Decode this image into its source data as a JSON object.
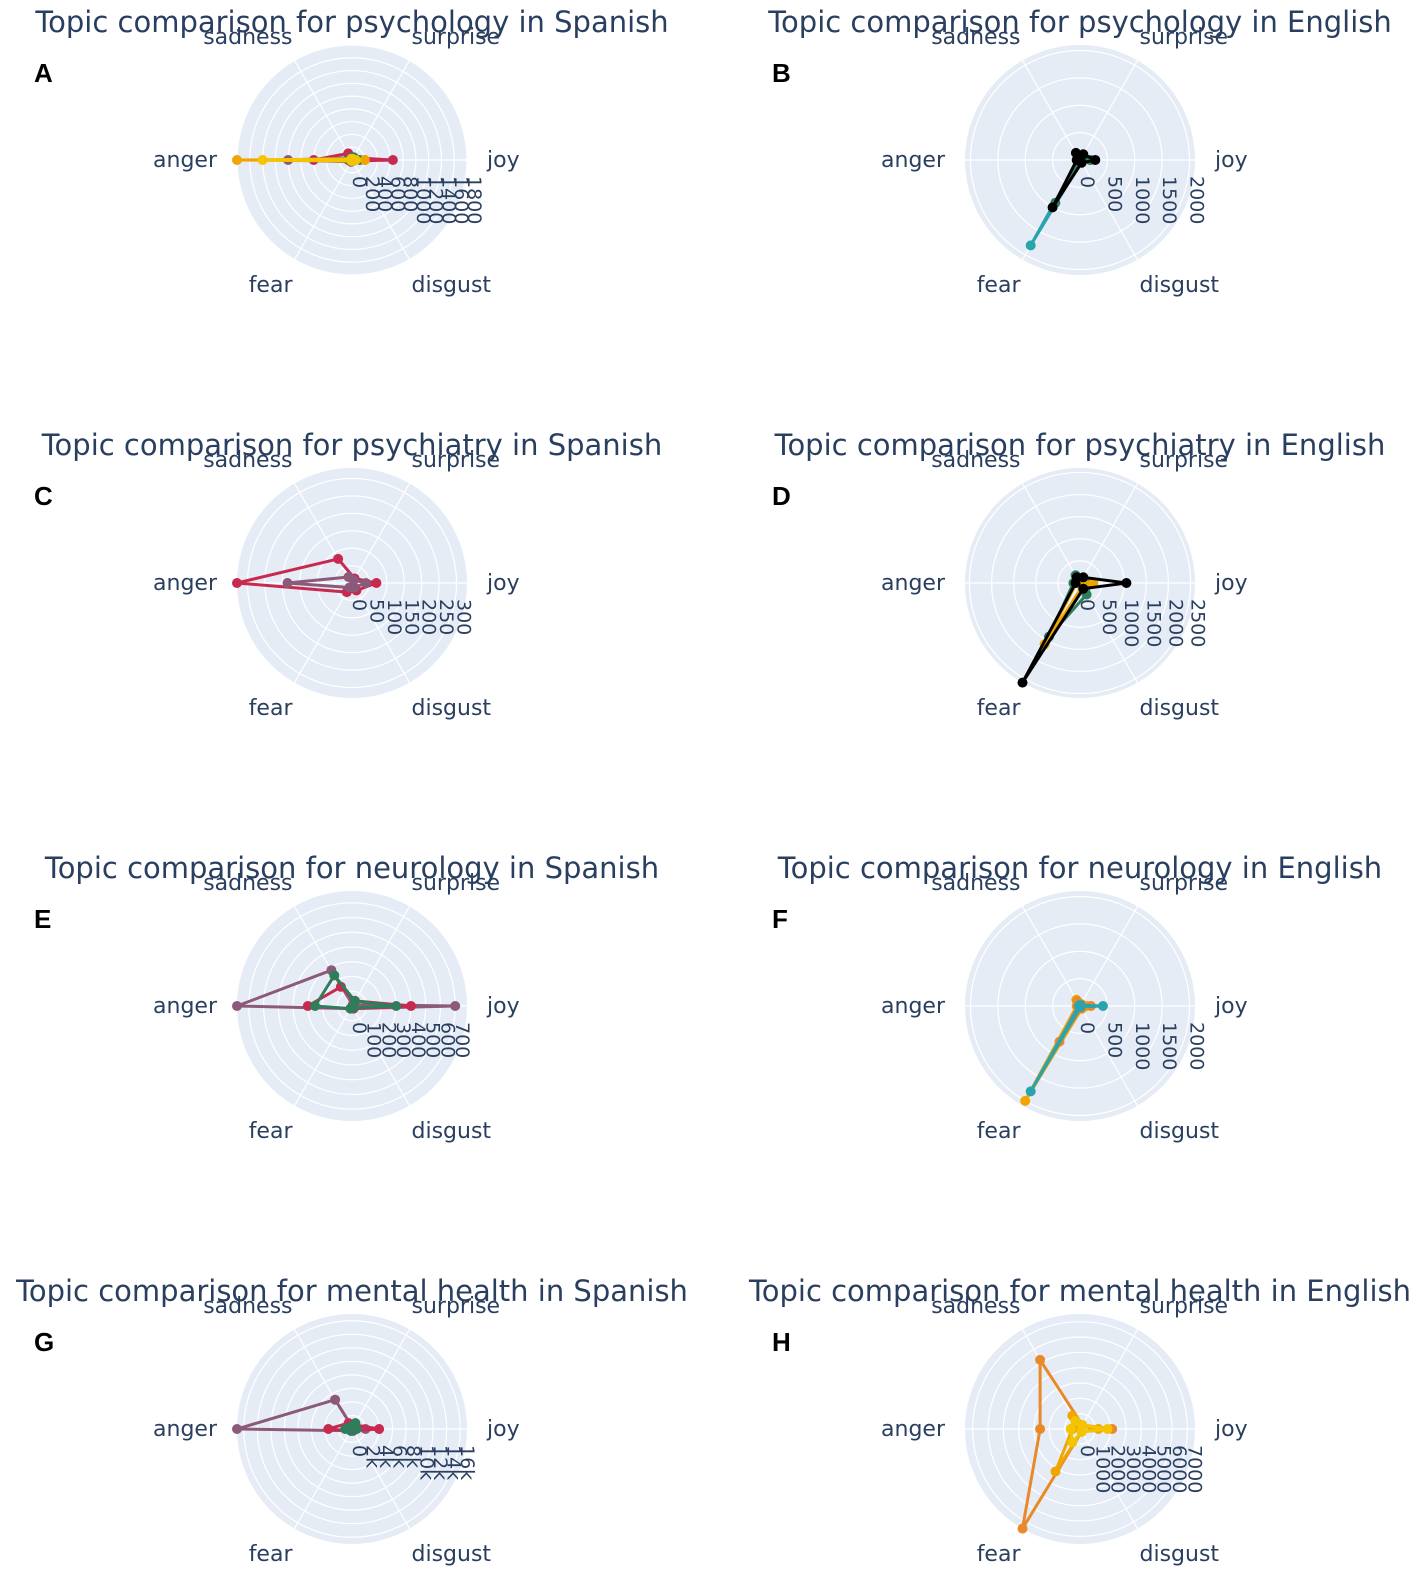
{
  "axes": [
    "joy",
    "surprise",
    "sadness",
    "anger",
    "fear",
    "disgust"
  ],
  "chart_data": [
    {
      "type": "radar",
      "panel": "A",
      "title": "Topic comparison for psychology in Spanish",
      "range": [
        0,
        1800
      ],
      "tick_values": [
        0,
        200,
        400,
        600,
        800,
        1000,
        1200,
        1400,
        1600,
        1800
      ],
      "tick_labels": [
        "0",
        "200",
        "400",
        "600",
        "800",
        "1000",
        "1200",
        "1400",
        "1600",
        "1800"
      ],
      "series": [
        {
          "color": "#c8294f",
          "values": {
            "joy": 640,
            "surprise": 40,
            "sadness": 120,
            "anger": 600,
            "fear": 30,
            "disgust": 20
          }
        },
        {
          "color": "#8c5a78",
          "values": {
            "joy": 200,
            "surprise": 40,
            "sadness": 40,
            "anger": 1000,
            "fear": 30,
            "disgust": 20
          }
        },
        {
          "color": "#2e7d5b",
          "values": {
            "joy": 120,
            "surprise": 50,
            "sadness": 30,
            "anger": 60,
            "fear": 20,
            "disgust": 20
          }
        },
        {
          "color": "#f0a500",
          "values": {
            "joy": 200,
            "surprise": 20,
            "sadness": 20,
            "anger": 1800,
            "fear": 20,
            "disgust": 20
          }
        },
        {
          "color": "#f5c400",
          "values": {
            "joy": 60,
            "surprise": 20,
            "sadness": 20,
            "anger": 1400,
            "fear": 10,
            "disgust": 10
          }
        }
      ]
    },
    {
      "type": "radar",
      "panel": "B",
      "title": "Topic comparison for psychology in English",
      "range": [
        0,
        2100
      ],
      "tick_values": [
        0,
        500,
        1000,
        1500,
        2000
      ],
      "tick_labels": [
        "0",
        "500",
        "1000",
        "1500",
        "2000"
      ],
      "series": [
        {
          "color": "#2aa3ad",
          "values": {
            "joy": 200,
            "surprise": 40,
            "sadness": 40,
            "anger": 30,
            "fear": 1800,
            "disgust": 40
          }
        },
        {
          "color": "#2e7d5b",
          "values": {
            "joy": 180,
            "surprise": 60,
            "sadness": 60,
            "anger": 20,
            "fear": 900,
            "disgust": 30
          }
        },
        {
          "color": "#000000",
          "values": {
            "joy": 280,
            "surprise": 120,
            "sadness": 150,
            "anger": 60,
            "fear": 1000,
            "disgust": 60
          }
        }
      ]
    },
    {
      "type": "radar",
      "panel": "C",
      "title": "Topic comparison for psychiatry in Spanish",
      "range": [
        0,
        330
      ],
      "tick_values": [
        0,
        50,
        100,
        150,
        200,
        250,
        300
      ],
      "tick_labels": [
        "0",
        "50",
        "100",
        "150",
        "200",
        "250",
        "300"
      ],
      "series": [
        {
          "color": "#c8294f",
          "values": {
            "joy": 70,
            "surprise": 15,
            "sadness": 80,
            "anger": 330,
            "fear": 30,
            "disgust": 25
          }
        },
        {
          "color": "#8c5a78",
          "values": {
            "joy": 40,
            "surprise": 10,
            "sadness": 20,
            "anger": 185,
            "fear": 15,
            "disgust": 15
          }
        }
      ]
    },
    {
      "type": "radar",
      "panel": "D",
      "title": "Topic comparison for psychiatry in English",
      "range": [
        0,
        2600
      ],
      "tick_values": [
        0,
        500,
        1000,
        1500,
        2000,
        2500
      ],
      "tick_labels": [
        "0",
        "500",
        "1000",
        "1500",
        "2000",
        "2500"
      ],
      "series": [
        {
          "color": "#2e7d5b",
          "values": {
            "joy": 250,
            "surprise": 80,
            "sadness": 200,
            "anger": 150,
            "fear": 1400,
            "disgust": 300
          }
        },
        {
          "color": "#f0a500",
          "values": {
            "joy": 300,
            "surprise": 60,
            "sadness": 100,
            "anger": 80,
            "fear": 1600,
            "disgust": 100
          }
        },
        {
          "color": "#000000",
          "values": {
            "joy": 1050,
            "surprise": 150,
            "sadness": 150,
            "anger": 100,
            "fear": 2600,
            "disgust": 150
          }
        }
      ]
    },
    {
      "type": "radar",
      "panel": "E",
      "title": "Topic comparison for neurology in Spanish",
      "range": [
        0,
        780
      ],
      "tick_values": [
        0,
        100,
        200,
        300,
        400,
        500,
        600,
        700
      ],
      "tick_labels": [
        "0",
        "100",
        "200",
        "300",
        "400",
        "500",
        "600",
        "700"
      ],
      "series": [
        {
          "color": "#8c5a78",
          "values": {
            "joy": 700,
            "surprise": 10,
            "sadness": 280,
            "anger": 780,
            "fear": 20,
            "disgust": 20
          }
        },
        {
          "color": "#c8294f",
          "values": {
            "joy": 400,
            "surprise": 40,
            "sadness": 150,
            "anger": 300,
            "fear": 20,
            "disgust": 20
          }
        },
        {
          "color": "#2e7d5b",
          "values": {
            "joy": 300,
            "surprise": 40,
            "sadness": 240,
            "anger": 250,
            "fear": 20,
            "disgust": 15
          }
        }
      ]
    },
    {
      "type": "radar",
      "panel": "F",
      "title": "Topic comparison for neurology in English",
      "range": [
        0,
        2100
      ],
      "tick_values": [
        0,
        500,
        1000,
        1500,
        2000
      ],
      "tick_labels": [
        "0",
        "500",
        "1000",
        "1500",
        "2000"
      ],
      "series": [
        {
          "color": "#f0a500",
          "values": {
            "joy": 120,
            "surprise": 40,
            "sadness": 130,
            "anger": 60,
            "fear": 2000,
            "disgust": 60
          }
        },
        {
          "color": "#e8892a",
          "values": {
            "joy": 200,
            "surprise": 40,
            "sadness": 100,
            "anger": 50,
            "fear": 750,
            "disgust": 50
          }
        },
        {
          "color": "#2aa3ad",
          "values": {
            "joy": 420,
            "surprise": 20,
            "sadness": 20,
            "anger": 20,
            "fear": 1800,
            "disgust": 20
          }
        }
      ]
    },
    {
      "type": "radar",
      "panel": "G",
      "title": "Topic comparison for mental health in Spanish",
      "range": [
        0,
        17000
      ],
      "tick_values": [
        0,
        2000,
        4000,
        6000,
        8000,
        10000,
        12000,
        14000,
        16000
      ],
      "tick_labels": [
        "0",
        "2k",
        "4k",
        "6k",
        "8k",
        "10k",
        "12k",
        "14k",
        "16k"
      ],
      "series": [
        {
          "color": "#8c5a78",
          "values": {
            "joy": 2000,
            "surprise": 200,
            "sadness": 5000,
            "anger": 17000,
            "fear": 300,
            "disgust": 300
          }
        },
        {
          "color": "#c8294f",
          "values": {
            "joy": 4000,
            "surprise": 700,
            "sadness": 1000,
            "anger": 3500,
            "fear": 300,
            "disgust": 300
          }
        },
        {
          "color": "#2e7d5b",
          "values": {
            "joy": 700,
            "surprise": 1000,
            "sadness": 400,
            "anger": 1000,
            "fear": 300,
            "disgust": 200
          }
        }
      ]
    },
    {
      "type": "radar",
      "panel": "H",
      "title": "Topic comparison for mental health in English",
      "range": [
        0,
        7500
      ],
      "tick_values": [
        0,
        1000,
        2000,
        3000,
        4000,
        5000,
        6000,
        7000
      ],
      "tick_labels": [
        "0",
        "1000",
        "2000",
        "3000",
        "4000",
        "5000",
        "6000",
        "7000"
      ],
      "series": [
        {
          "color": "#e8892a",
          "values": {
            "joy": 2100,
            "surprise": 300,
            "sadness": 5200,
            "anger": 2600,
            "fear": 7500,
            "disgust": 200
          }
        },
        {
          "color": "#f0a500",
          "values": {
            "joy": 1200,
            "surprise": 200,
            "sadness": 1000,
            "anger": 500,
            "fear": 3200,
            "disgust": 200
          }
        },
        {
          "color": "#f5c400",
          "values": {
            "joy": 1800,
            "surprise": 300,
            "sadness": 600,
            "anger": 600,
            "fear": 1000,
            "disgust": 200
          }
        }
      ]
    }
  ]
}
